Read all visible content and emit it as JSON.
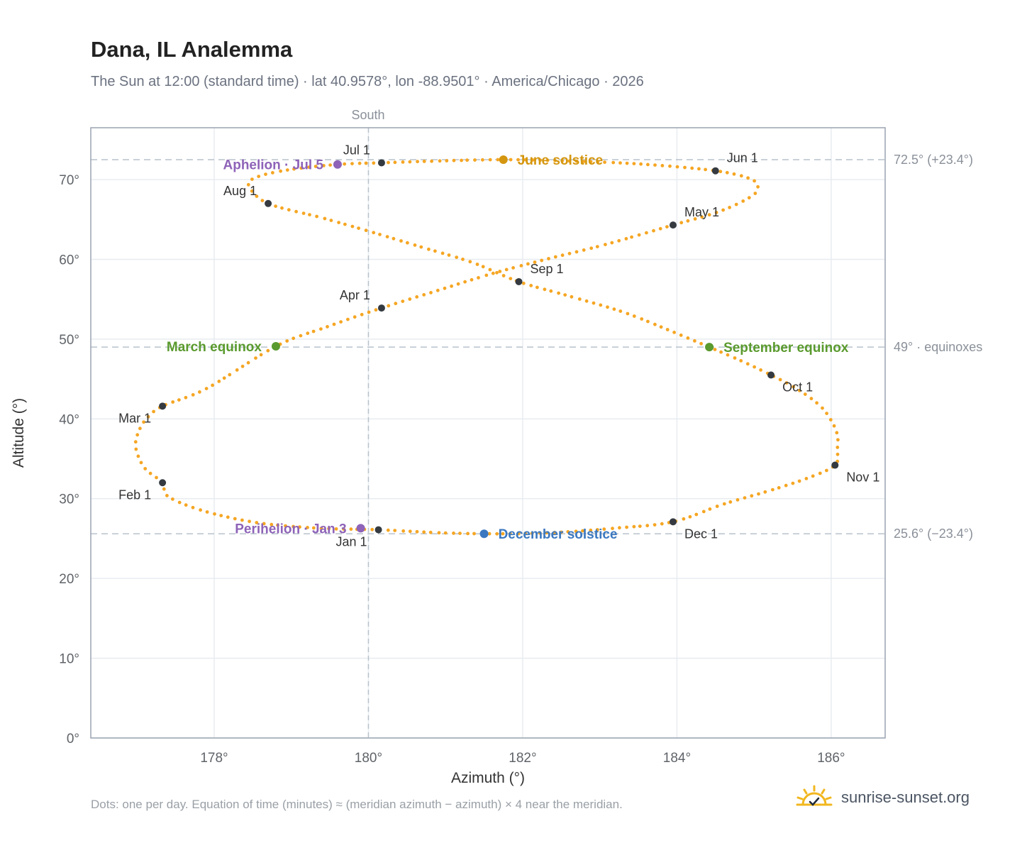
{
  "title": "Dana, IL Analemma",
  "subtitle": "The Sun at 12:00 (standard time) · lat 40.9578°, lon -88.9501° · America/Chicago · 2026",
  "footnote": "Dots: one per day. Equation of time (minutes) ≈ (meridian azimuth − azimuth) × 4 near the meridian.",
  "brand": {
    "text": "sunrise-sunset.org",
    "icon": "sun-check-icon"
  },
  "chart_data": {
    "type": "scatter",
    "xlabel": "Azimuth (°)",
    "ylabel": "Altitude (°)",
    "xlim": [
      176.4,
      186.7
    ],
    "ylim": [
      0,
      76.5
    ],
    "xticks": [
      {
        "value": 178,
        "label": "178°"
      },
      {
        "value": 180,
        "label": "180°"
      },
      {
        "value": 182,
        "label": "182°"
      },
      {
        "value": 184,
        "label": "184°"
      },
      {
        "value": 186,
        "label": "186°"
      }
    ],
    "yticks": [
      {
        "value": 0,
        "label": "0°"
      },
      {
        "value": 10,
        "label": "10°"
      },
      {
        "value": 20,
        "label": "20°"
      },
      {
        "value": 30,
        "label": "30°"
      },
      {
        "value": 40,
        "label": "40°"
      },
      {
        "value": 50,
        "label": "50°"
      },
      {
        "value": 60,
        "label": "60°"
      },
      {
        "value": 70,
        "label": "70°"
      }
    ],
    "grid": true,
    "meridian": {
      "value": 180,
      "label": "South"
    },
    "reference_lines": [
      {
        "value": 72.5,
        "label": "72.5° (+23.4°)"
      },
      {
        "value": 49,
        "label": "49° · equinoxes"
      },
      {
        "value": 25.6,
        "label": "25.6° (−23.4°)"
      }
    ],
    "daily_points": [
      [
        180.13,
        26.1
      ],
      [
        179.35,
        26.3
      ],
      [
        178.55,
        27.0
      ],
      [
        177.85,
        28.5
      ],
      [
        177.4,
        30.3
      ],
      [
        177.33,
        32.0
      ],
      [
        177.12,
        33.6
      ],
      [
        177.02,
        35.2
      ],
      [
        176.98,
        36.8
      ],
      [
        177.02,
        38.4
      ],
      [
        177.12,
        40.0
      ],
      [
        177.33,
        41.6
      ],
      [
        177.9,
        43.8
      ],
      [
        178.8,
        49.1
      ],
      [
        179.45,
        51.5
      ],
      [
        180.17,
        53.9
      ],
      [
        180.9,
        56.1
      ],
      [
        181.6,
        58.2
      ],
      [
        182.3,
        60.0
      ],
      [
        183.05,
        61.8
      ],
      [
        183.95,
        64.3
      ],
      [
        184.55,
        66.0
      ],
      [
        184.95,
        67.8
      ],
      [
        185.05,
        69.0
      ],
      [
        184.95,
        70.1
      ],
      [
        184.5,
        71.1
      ],
      [
        183.6,
        71.9
      ],
      [
        182.7,
        72.3
      ],
      [
        181.75,
        72.5
      ],
      [
        180.8,
        72.3
      ],
      [
        180.17,
        72.1
      ],
      [
        179.6,
        71.9
      ],
      [
        178.95,
        71.2
      ],
      [
        178.55,
        70.3
      ],
      [
        178.45,
        69.2
      ],
      [
        178.7,
        67.0
      ],
      [
        179.4,
        65.2
      ],
      [
        180.05,
        63.4
      ],
      [
        180.7,
        61.5
      ],
      [
        181.35,
        59.6
      ],
      [
        181.95,
        57.2
      ],
      [
        182.6,
        55.4
      ],
      [
        183.3,
        53.4
      ],
      [
        183.85,
        51.3
      ],
      [
        184.42,
        49.0
      ],
      [
        184.85,
        47.2
      ],
      [
        185.22,
        45.5
      ],
      [
        185.55,
        43.8
      ],
      [
        185.85,
        41.7
      ],
      [
        186.0,
        39.8
      ],
      [
        186.08,
        38.0
      ],
      [
        186.08,
        36.2
      ],
      [
        186.05,
        34.2
      ],
      [
        185.7,
        32.6
      ],
      [
        185.2,
        31.0
      ],
      [
        184.6,
        29.3
      ],
      [
        183.95,
        27.1
      ],
      [
        183.2,
        26.3
      ],
      [
        182.5,
        25.8
      ],
      [
        181.8,
        25.6
      ],
      [
        181.0,
        25.7
      ]
    ],
    "month_markers": [
      {
        "label": "Jan 1",
        "x": 180.13,
        "y": 26.1,
        "label_pos": "below-left"
      },
      {
        "label": "Feb 1",
        "x": 177.33,
        "y": 32.0,
        "label_pos": "below-left"
      },
      {
        "label": "Mar 1",
        "x": 177.33,
        "y": 41.6,
        "label_pos": "below-left"
      },
      {
        "label": "Apr 1",
        "x": 180.17,
        "y": 53.9,
        "label_pos": "above-left"
      },
      {
        "label": "May 1",
        "x": 183.95,
        "y": 64.3,
        "label_pos": "above-right"
      },
      {
        "label": "Jun 1",
        "x": 184.5,
        "y": 71.1,
        "label_pos": "above-right"
      },
      {
        "label": "Jul 1",
        "x": 180.17,
        "y": 72.1,
        "label_pos": "above-left"
      },
      {
        "label": "Aug 1",
        "x": 178.7,
        "y": 67.0,
        "label_pos": "above-left"
      },
      {
        "label": "Sep 1",
        "x": 181.95,
        "y": 57.2,
        "label_pos": "above-right"
      },
      {
        "label": "Oct 1",
        "x": 185.22,
        "y": 45.5,
        "label_pos": "below-right"
      },
      {
        "label": "Nov 1",
        "x": 186.05,
        "y": 34.2,
        "label_pos": "below-right"
      },
      {
        "label": "Dec 1",
        "x": 183.95,
        "y": 27.1,
        "label_pos": "below-right"
      }
    ],
    "events": [
      {
        "label": "June solstice",
        "x": 181.75,
        "y": 72.5,
        "color": "#d4960f",
        "label_pos": "right"
      },
      {
        "label": "Aphelion · Jul 5",
        "x": 179.6,
        "y": 71.9,
        "color": "#8e63b8",
        "label_pos": "left"
      },
      {
        "label": "March equinox",
        "x": 178.8,
        "y": 49.1,
        "color": "#5a9a2e",
        "label_pos": "left"
      },
      {
        "label": "September equinox",
        "x": 184.42,
        "y": 49.0,
        "color": "#5a9a2e",
        "label_pos": "right"
      },
      {
        "label": "Perihelion · Jan 3",
        "x": 179.9,
        "y": 26.3,
        "color": "#8e63b8",
        "label_pos": "left"
      },
      {
        "label": "December solstice",
        "x": 181.5,
        "y": 25.6,
        "color": "#3b78c0",
        "label_pos": "right"
      }
    ],
    "colors": {
      "curve": "#f5a623",
      "marker": "#343a40",
      "grid": "#e8ecf0",
      "frame": "#9aa3b0",
      "refline": "#b8c2cc"
    }
  }
}
